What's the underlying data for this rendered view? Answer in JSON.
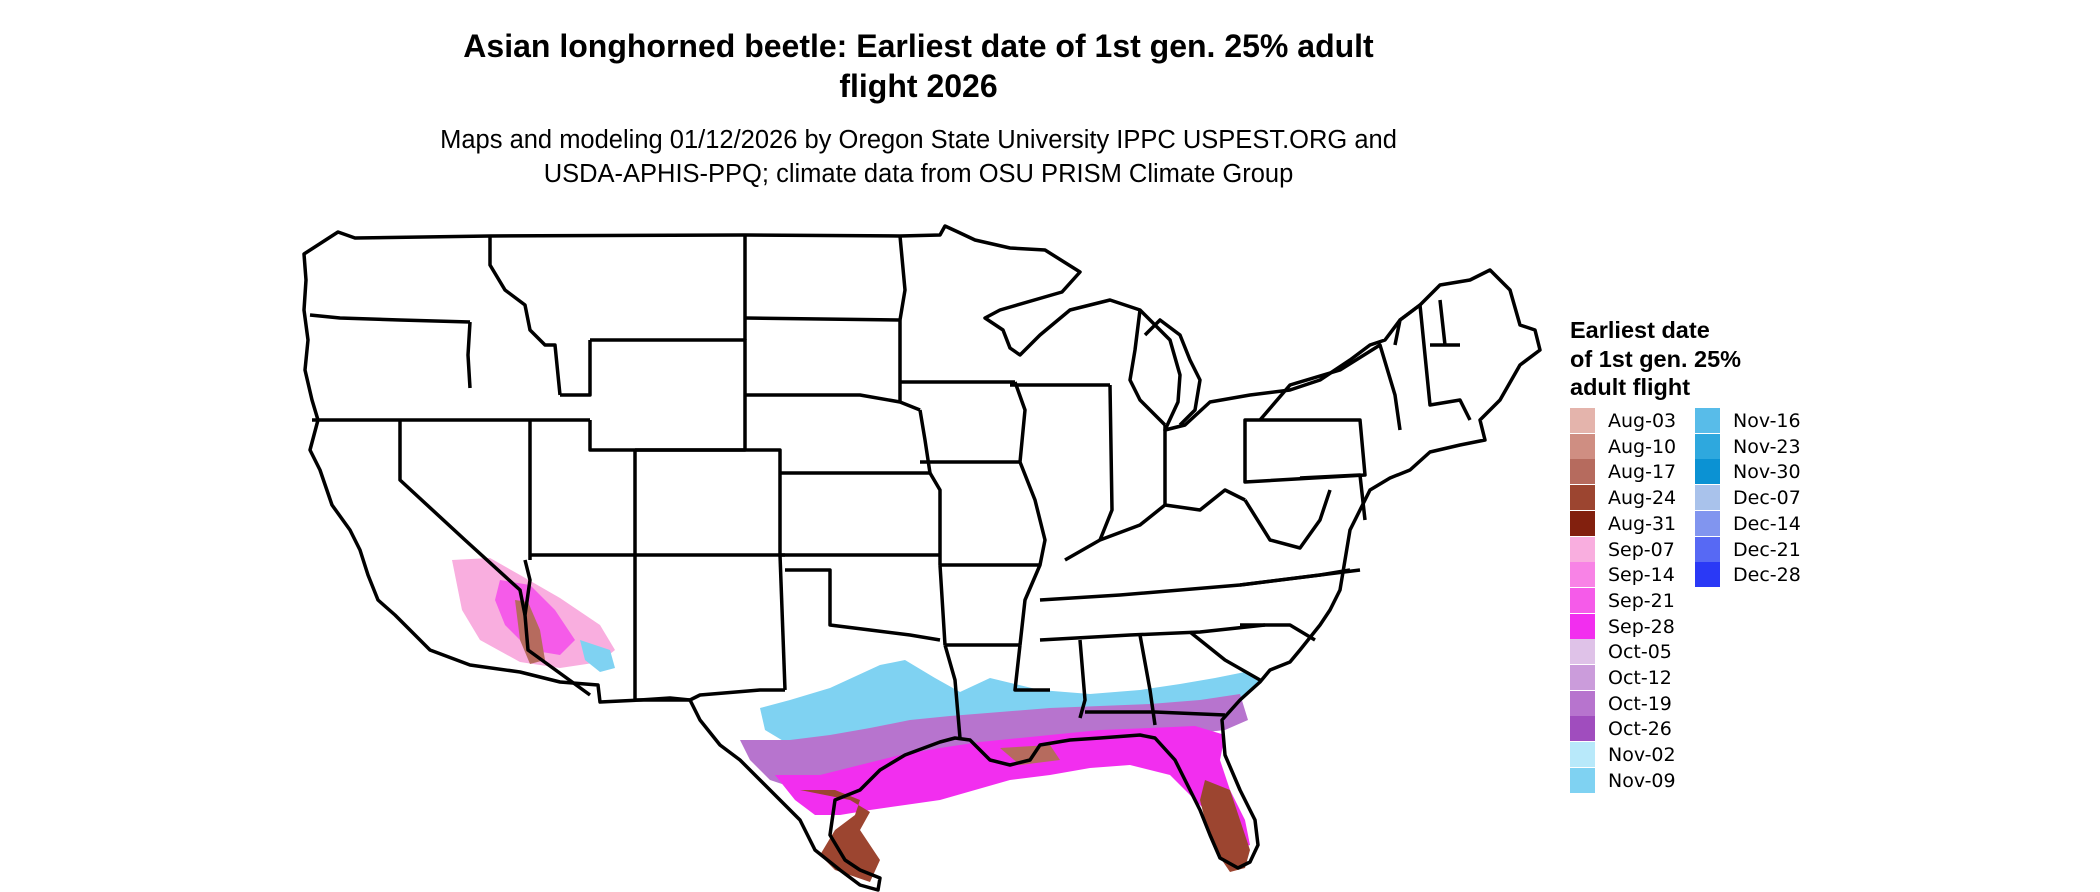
{
  "map": {
    "title": [
      "Asian longhorned beetle: Earliest date of 1st gen. 25% adult",
      "flight 2026"
    ],
    "subtitle": [
      "Maps and modeling 01/12/2026 by Oregon State University IPPC USPEST.ORG and",
      "USDA-APHIS-PPQ; climate data from OSU PRISM Climate Group"
    ],
    "region": "Contiguous United States",
    "state_outline_color": "#000000"
  },
  "legend": {
    "title": [
      "Earliest date",
      "of 1st gen. 25%",
      "adult flight"
    ],
    "items": [
      {
        "label": "Aug-03",
        "color": "#E4B4AC"
      },
      {
        "label": "Aug-10",
        "color": "#CF8E82"
      },
      {
        "label": "Aug-17",
        "color": "#B66B5E"
      },
      {
        "label": "Aug-24",
        "color": "#9C4530"
      },
      {
        "label": "Aug-31",
        "color": "#82200E"
      },
      {
        "label": "Sep-07",
        "color": "#F9AEDF"
      },
      {
        "label": "Sep-14",
        "color": "#F883E6"
      },
      {
        "label": "Sep-21",
        "color": "#F55BE9"
      },
      {
        "label": "Sep-28",
        "color": "#F22EEF"
      },
      {
        "label": "Oct-05",
        "color": "#DFC2E8"
      },
      {
        "label": "Oct-12",
        "color": "#CB9CDB"
      },
      {
        "label": "Oct-19",
        "color": "#B774CE"
      },
      {
        "label": "Oct-26",
        "color": "#A04DBE"
      },
      {
        "label": "Nov-02",
        "color": "#B8E9FA"
      },
      {
        "label": "Nov-09",
        "color": "#7FD2F2"
      },
      {
        "label": "Nov-16",
        "color": "#58BCE9"
      },
      {
        "label": "Nov-23",
        "color": "#2EA8DE"
      },
      {
        "label": "Nov-30",
        "color": "#0B92D3"
      },
      {
        "label": "Dec-07",
        "color": "#A9C2EB"
      },
      {
        "label": "Dec-14",
        "color": "#8195EF"
      },
      {
        "label": "Dec-21",
        "color": "#5769F4"
      },
      {
        "label": "Dec-28",
        "color": "#2A39F6"
      }
    ]
  }
}
